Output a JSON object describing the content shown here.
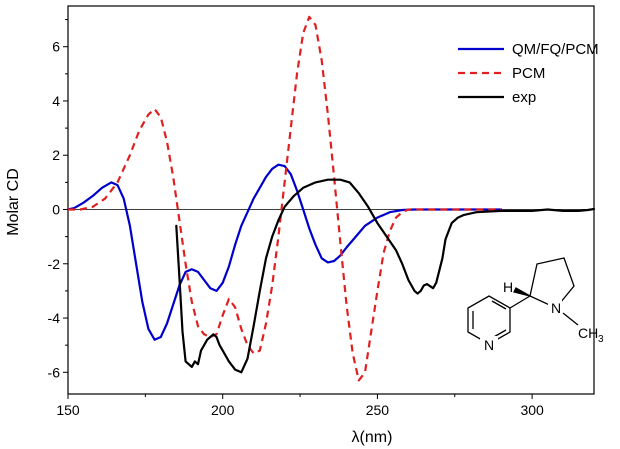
{
  "chart_data": {
    "type": "line",
    "xlabel": "λ(nm)",
    "ylabel": "Molar CD",
    "xlim": [
      150,
      320
    ],
    "ylim": [
      -6.8,
      7.5
    ],
    "x_ticks": [
      150,
      200,
      250,
      300
    ],
    "y_ticks": [
      -6,
      -4,
      -2,
      0,
      2,
      4,
      6
    ],
    "grid": false,
    "zero_line": true,
    "legend_position": "top-right",
    "series": [
      {
        "name": "QM/FQ/PCM",
        "color": "#0000cc",
        "style": "solid",
        "points": [
          [
            150,
            0
          ],
          [
            152,
            0.05
          ],
          [
            155,
            0.25
          ],
          [
            158,
            0.5
          ],
          [
            161,
            0.8
          ],
          [
            164,
            1.0
          ],
          [
            166,
            0.9
          ],
          [
            168,
            0.4
          ],
          [
            170,
            -0.6
          ],
          [
            172,
            -2.0
          ],
          [
            174,
            -3.4
          ],
          [
            176,
            -4.4
          ],
          [
            178,
            -4.8
          ],
          [
            180,
            -4.7
          ],
          [
            182,
            -4.2
          ],
          [
            184,
            -3.5
          ],
          [
            186,
            -2.8
          ],
          [
            188,
            -2.3
          ],
          [
            190,
            -2.2
          ],
          [
            192,
            -2.3
          ],
          [
            194,
            -2.6
          ],
          [
            196,
            -2.9
          ],
          [
            198,
            -3.0
          ],
          [
            200,
            -2.7
          ],
          [
            202,
            -2.1
          ],
          [
            204,
            -1.3
          ],
          [
            206,
            -0.6
          ],
          [
            208,
            -0.1
          ],
          [
            210,
            0.4
          ],
          [
            212,
            0.8
          ],
          [
            214,
            1.2
          ],
          [
            216,
            1.5
          ],
          [
            218,
            1.65
          ],
          [
            220,
            1.6
          ],
          [
            222,
            1.3
          ],
          [
            224,
            0.7
          ],
          [
            226,
            0.0
          ],
          [
            228,
            -0.7
          ],
          [
            230,
            -1.3
          ],
          [
            232,
            -1.8
          ],
          [
            234,
            -1.95
          ],
          [
            236,
            -1.9
          ],
          [
            238,
            -1.7
          ],
          [
            240,
            -1.4
          ],
          [
            243,
            -1.0
          ],
          [
            246,
            -0.6
          ],
          [
            250,
            -0.3
          ],
          [
            254,
            -0.1
          ],
          [
            258,
            -0.02
          ],
          [
            262,
            0
          ],
          [
            275,
            0
          ],
          [
            290,
            0
          ]
        ]
      },
      {
        "name": "PCM",
        "color": "#e02020",
        "style": "dashed",
        "points": [
          [
            150,
            0
          ],
          [
            154,
            0
          ],
          [
            158,
            0.1
          ],
          [
            162,
            0.4
          ],
          [
            166,
            1.0
          ],
          [
            170,
            2.0
          ],
          [
            173,
            2.9
          ],
          [
            176,
            3.5
          ],
          [
            178,
            3.7
          ],
          [
            180,
            3.4
          ],
          [
            182,
            2.5
          ],
          [
            184,
            1.2
          ],
          [
            186,
            -0.4
          ],
          [
            188,
            -2.0
          ],
          [
            190,
            -3.4
          ],
          [
            192,
            -4.3
          ],
          [
            194,
            -4.6
          ],
          [
            196,
            -4.7
          ],
          [
            198,
            -4.6
          ],
          [
            200,
            -3.9
          ],
          [
            202,
            -3.3
          ],
          [
            204,
            -3.6
          ],
          [
            206,
            -4.4
          ],
          [
            208,
            -5.0
          ],
          [
            210,
            -5.3
          ],
          [
            212,
            -5.2
          ],
          [
            214,
            -4.2
          ],
          [
            216,
            -2.8
          ],
          [
            218,
            -1.0
          ],
          [
            220,
            1.0
          ],
          [
            222,
            3.0
          ],
          [
            224,
            5.0
          ],
          [
            226,
            6.5
          ],
          [
            228,
            7.1
          ],
          [
            230,
            6.8
          ],
          [
            232,
            5.5
          ],
          [
            234,
            3.5
          ],
          [
            236,
            1.2
          ],
          [
            238,
            -1.2
          ],
          [
            240,
            -3.5
          ],
          [
            242,
            -5.3
          ],
          [
            244,
            -6.3
          ],
          [
            246,
            -6.0
          ],
          [
            248,
            -4.5
          ],
          [
            250,
            -3.0
          ],
          [
            252,
            -1.6
          ],
          [
            254,
            -0.8
          ],
          [
            256,
            -0.3
          ],
          [
            258,
            -0.1
          ],
          [
            260,
            0
          ],
          [
            270,
            0
          ],
          [
            290,
            0
          ]
        ]
      },
      {
        "name": "exp",
        "color": "#000000",
        "style": "solid",
        "points": [
          [
            185,
            -0.6
          ],
          [
            186,
            -2.5
          ],
          [
            187,
            -4.5
          ],
          [
            188,
            -5.6
          ],
          [
            189,
            -5.7
          ],
          [
            190,
            -5.8
          ],
          [
            191,
            -5.6
          ],
          [
            192,
            -5.7
          ],
          [
            193,
            -5.2
          ],
          [
            194,
            -5.0
          ],
          [
            195,
            -4.8
          ],
          [
            196,
            -4.7
          ],
          [
            197,
            -4.6
          ],
          [
            198,
            -4.7
          ],
          [
            199,
            -5.0
          ],
          [
            200,
            -5.2
          ],
          [
            202,
            -5.6
          ],
          [
            204,
            -5.9
          ],
          [
            206,
            -6.0
          ],
          [
            208,
            -5.5
          ],
          [
            210,
            -4.3
          ],
          [
            212,
            -3.0
          ],
          [
            214,
            -1.8
          ],
          [
            216,
            -1.0
          ],
          [
            218,
            -0.4
          ],
          [
            220,
            0.1
          ],
          [
            223,
            0.5
          ],
          [
            226,
            0.8
          ],
          [
            230,
            1.0
          ],
          [
            234,
            1.1
          ],
          [
            238,
            1.1
          ],
          [
            241,
            1.0
          ],
          [
            244,
            0.6
          ],
          [
            247,
            0.1
          ],
          [
            250,
            -0.5
          ],
          [
            253,
            -1.0
          ],
          [
            256,
            -1.5
          ],
          [
            258,
            -2.0
          ],
          [
            260,
            -2.6
          ],
          [
            262,
            -3.0
          ],
          [
            263,
            -3.1
          ],
          [
            264,
            -3.0
          ],
          [
            265,
            -2.8
          ],
          [
            266,
            -2.75
          ],
          [
            268,
            -2.9
          ],
          [
            269,
            -2.7
          ],
          [
            271,
            -1.8
          ],
          [
            272,
            -1.1
          ],
          [
            274,
            -0.5
          ],
          [
            276,
            -0.3
          ],
          [
            278,
            -0.2
          ],
          [
            282,
            -0.1
          ],
          [
            290,
            -0.05
          ],
          [
            300,
            -0.05
          ],
          [
            305,
            0
          ],
          [
            310,
            -0.05
          ],
          [
            315,
            -0.05
          ],
          [
            318,
            -0.02
          ],
          [
            320,
            0.02
          ]
        ]
      }
    ]
  },
  "molecule": {
    "h_label": "H",
    "n_ring_label": "N",
    "pyridine_n_label": "N",
    "methyl_label": "CH",
    "methyl_subscript": "3"
  }
}
